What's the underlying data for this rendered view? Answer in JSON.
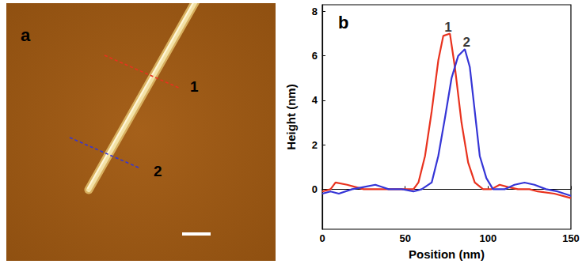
{
  "image_panel": {
    "panel_label": "a",
    "lines": [
      {
        "label": "1",
        "color": "#e8321e",
        "line_style": "dashed"
      },
      {
        "label": "2",
        "color": "#3535d6",
        "line_style": "dashed"
      }
    ]
  },
  "chart_data": {
    "type": "line",
    "panel_label": "b",
    "x_label": "Position (nm)",
    "y_label": "Height (nm)",
    "xlim": [
      0,
      150
    ],
    "xticks": [
      0,
      50,
      100,
      150
    ],
    "ylim": [
      -1.8,
      8.3
    ],
    "yticks": [
      0,
      2,
      4,
      6,
      8
    ],
    "grid": false,
    "series": [
      {
        "color": "#e8321e",
        "x": [
          0,
          5,
          8,
          15,
          20,
          25,
          30,
          40,
          50,
          55,
          58,
          62,
          66,
          70,
          73,
          77,
          80,
          84,
          88,
          92,
          97,
          102,
          107,
          112,
          118,
          125,
          130,
          140,
          150
        ],
        "values": [
          -0.1,
          0.0,
          0.3,
          0.2,
          0.1,
          0.0,
          0.0,
          0.0,
          0.0,
          0.0,
          0.3,
          1.5,
          3.5,
          5.8,
          6.9,
          7.0,
          5.5,
          3.0,
          1.2,
          0.3,
          0.0,
          0.0,
          0.2,
          0.1,
          0.0,
          0.0,
          -0.1,
          -0.2,
          -0.4
        ]
      },
      {
        "color": "#3535d6",
        "x": [
          0,
          5,
          10,
          18,
          25,
          32,
          36,
          40,
          48,
          55,
          60,
          66,
          70,
          74,
          78,
          82,
          86,
          89,
          92,
          95,
          99,
          103,
          110,
          116,
          122,
          128,
          135,
          142,
          150
        ],
        "values": [
          -0.2,
          -0.1,
          -0.2,
          0.0,
          0.1,
          0.2,
          0.1,
          0.0,
          0.0,
          -0.1,
          0.0,
          0.3,
          1.5,
          3.2,
          5.0,
          6.0,
          6.3,
          5.5,
          3.5,
          1.5,
          0.5,
          0.0,
          0.0,
          0.2,
          0.3,
          0.2,
          0.0,
          -0.1,
          -0.3
        ]
      }
    ],
    "annotations": [
      {
        "text": "1",
        "x": 76,
        "y": 7.0
      },
      {
        "text": "2",
        "x": 87,
        "y": 6.3
      }
    ]
  }
}
